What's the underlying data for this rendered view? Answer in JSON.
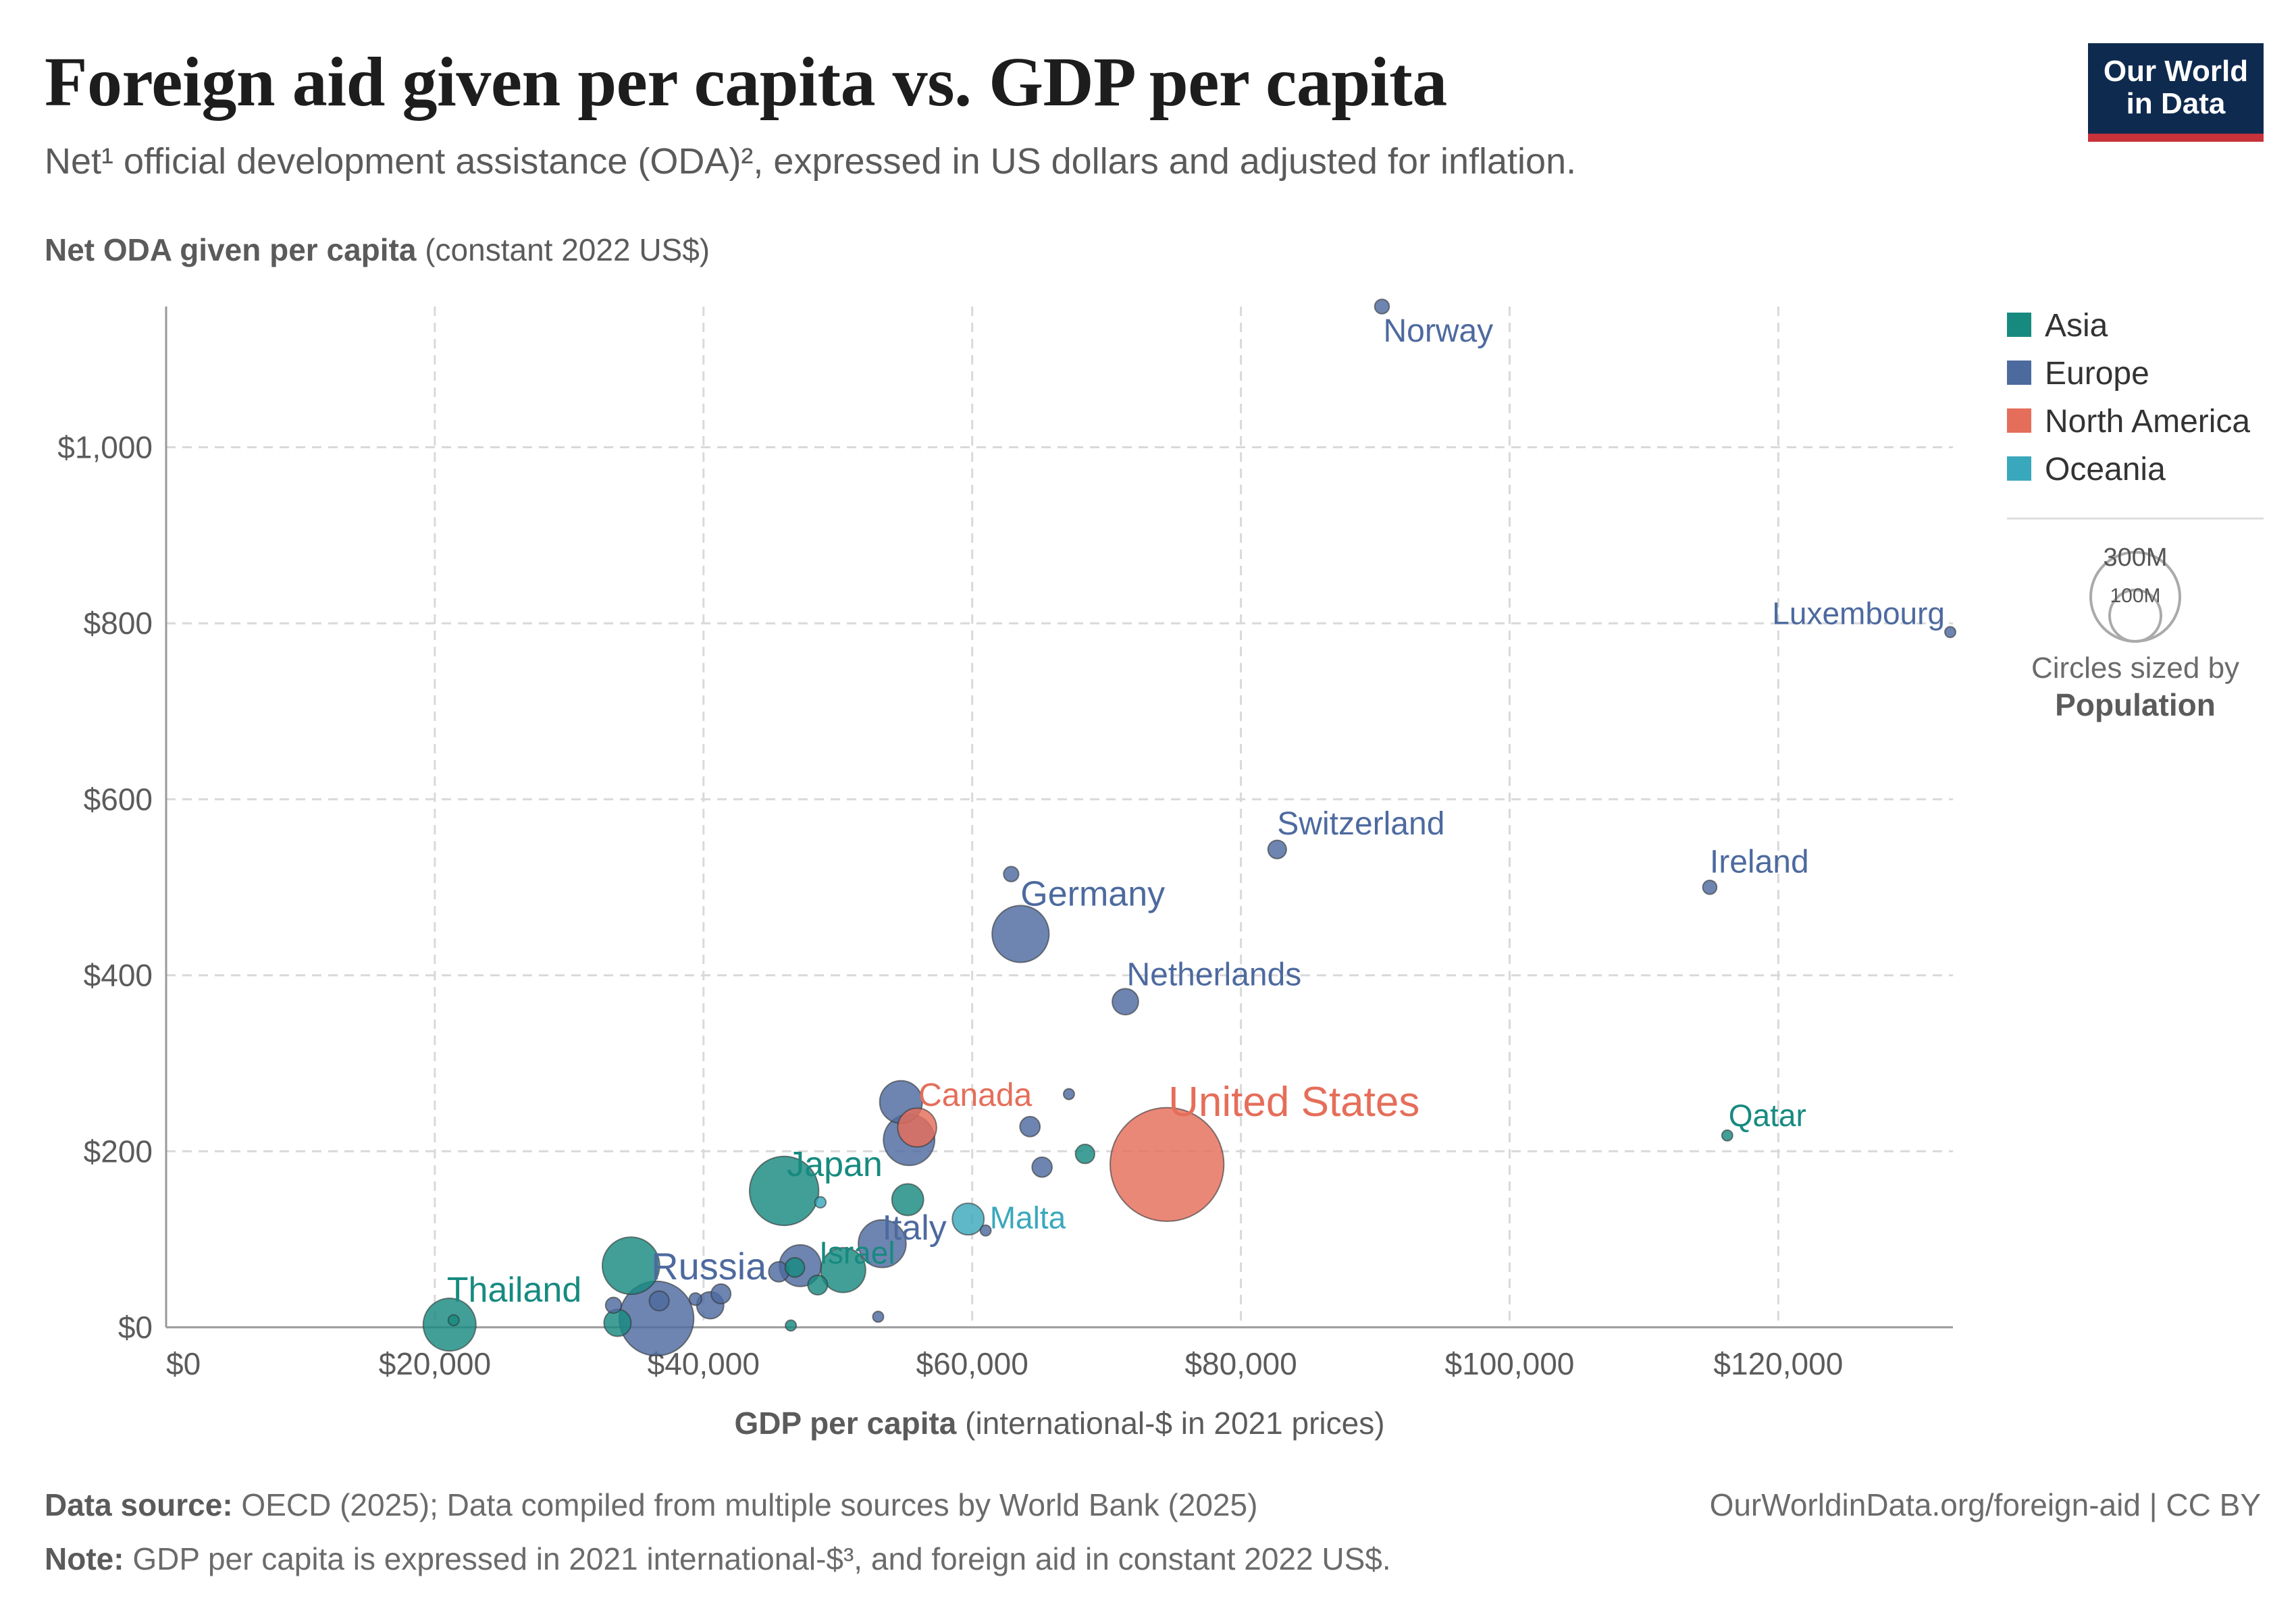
{
  "header": {
    "title": "Foreign aid given per capita vs. GDP per capita",
    "subtitle": "Net¹ official development assistance (ODA)², expressed in US dollars and adjusted for inflation."
  },
  "logo": {
    "line1": "Our World",
    "line2": "in Data"
  },
  "colors": {
    "Asia": "#178a80",
    "Europe": "#4d6a9f",
    "North America": "#e56e5a",
    "Oceania": "#3aa8bc",
    "grid": "#d9d9d9",
    "axis": "#666666",
    "text": "#5b5b5b"
  },
  "chart_data": {
    "type": "scatter",
    "title": "Foreign aid given per capita vs. GDP per capita",
    "xlabel": {
      "bold": "GDP per capita",
      "rest": " (international-$ in 2021 prices)"
    },
    "ylabel": {
      "bold": "Net ODA given per capita",
      "rest": " (constant 2022 US$)"
    },
    "xlim": [
      0,
      133000
    ],
    "ylim": [
      0,
      1160
    ],
    "x_ticks": [
      0,
      20000,
      40000,
      60000,
      80000,
      100000,
      120000
    ],
    "x_tick_labels": [
      "$0",
      "$20,000",
      "$40,000",
      "$60,000",
      "$80,000",
      "$100,000",
      "$120,000"
    ],
    "y_ticks": [
      0,
      200,
      400,
      600,
      800,
      1000
    ],
    "y_tick_labels": [
      "$0",
      "$200",
      "$400",
      "$600",
      "$800",
      "$1,000"
    ],
    "grid": true,
    "legend": {
      "placement": "right",
      "entries": [
        "Asia",
        "Europe",
        "North America",
        "Oceania"
      ],
      "size_legend": {
        "large": "300M",
        "small": "100M",
        "caption": "Circles sized by",
        "variable": "Population"
      }
    },
    "points": [
      {
        "label": "Norway",
        "continent": "Europe",
        "x": 90500,
        "y": 1160,
        "pop": 5.5
      },
      {
        "label": "Luxembourg",
        "continent": "Europe",
        "x": 132800,
        "y": 790,
        "pop": 0.65
      },
      {
        "label": "Switzerland",
        "continent": "Europe",
        "x": 82700,
        "y": 543,
        "pop": 8.8
      },
      {
        "label": "Ireland",
        "continent": "Europe",
        "x": 114900,
        "y": 500,
        "pop": 5.1
      },
      {
        "label": "",
        "continent": "Europe",
        "x": 62900,
        "y": 515,
        "pop": 5.9
      },
      {
        "label": "Germany",
        "continent": "Europe",
        "x": 63600,
        "y": 447,
        "pop": 84
      },
      {
        "label": "Netherlands",
        "continent": "Europe",
        "x": 71400,
        "y": 370,
        "pop": 17.8
      },
      {
        "label": "",
        "continent": "Europe",
        "x": 67200,
        "y": 265,
        "pop": 2.1
      },
      {
        "label": "",
        "continent": "Europe",
        "x": 54700,
        "y": 256,
        "pop": 47
      },
      {
        "label": "Canada",
        "continent": "North America",
        "x": 55900,
        "y": 227,
        "pop": 39
      },
      {
        "label": "",
        "continent": "Europe",
        "x": 55300,
        "y": 213,
        "pop": 68
      },
      {
        "label": "",
        "continent": "Europe",
        "x": 64300,
        "y": 228,
        "pop": 10.5
      },
      {
        "label": "",
        "continent": "Asia",
        "x": 68400,
        "y": 197,
        "pop": 9.5
      },
      {
        "label": "",
        "continent": "Europe",
        "x": 65200,
        "y": 182,
        "pop": 10.4
      },
      {
        "label": "United States",
        "continent": "North America",
        "x": 74500,
        "y": 185,
        "pop": 335
      },
      {
        "label": "Qatar",
        "continent": "Asia",
        "x": 116200,
        "y": 218,
        "pop": 2.7
      },
      {
        "label": "Japan",
        "continent": "Asia",
        "x": 46000,
        "y": 155,
        "pop": 124
      },
      {
        "label": "",
        "continent": "Oceania",
        "x": 48700,
        "y": 142,
        "pop": 3.2
      },
      {
        "label": "",
        "continent": "Asia",
        "x": 55200,
        "y": 145,
        "pop": 26
      },
      {
        "label": "Malta",
        "continent": "Oceania",
        "x": 59700,
        "y": 123,
        "pop": 26
      },
      {
        "label": "",
        "continent": "Europe",
        "x": 61000,
        "y": 110,
        "pop": 0.55
      },
      {
        "label": "Italy",
        "continent": "Europe",
        "x": 53300,
        "y": 95,
        "pop": 59
      },
      {
        "label": "",
        "continent": "Asia",
        "x": 34600,
        "y": 70,
        "pop": 85
      },
      {
        "label": "",
        "continent": "Europe",
        "x": 47200,
        "y": 70,
        "pop": 45
      },
      {
        "label": "",
        "continent": "Asia",
        "x": 50400,
        "y": 65,
        "pop": 52
      },
      {
        "label": "Israel",
        "continent": "Asia",
        "x": 46800,
        "y": 68,
        "pop": 9.7
      },
      {
        "label": "",
        "continent": "Europe",
        "x": 45600,
        "y": 63,
        "pop": 10.4
      },
      {
        "label": "",
        "continent": "Asia",
        "x": 48500,
        "y": 48,
        "pop": 10
      },
      {
        "label": "Russia",
        "continent": "Europe",
        "x": 36500,
        "y": 10,
        "pop": 144
      },
      {
        "label": "",
        "continent": "Europe",
        "x": 41300,
        "y": 38,
        "pop": 10
      },
      {
        "label": "",
        "continent": "Europe",
        "x": 40500,
        "y": 25,
        "pop": 19
      },
      {
        "label": "",
        "continent": "Europe",
        "x": 39400,
        "y": 32,
        "pop": 4
      },
      {
        "label": "",
        "continent": "Europe",
        "x": 33300,
        "y": 25,
        "pop": 6.5
      },
      {
        "label": "",
        "continent": "Europe",
        "x": 36700,
        "y": 30,
        "pop": 10
      },
      {
        "label": "",
        "continent": "Asia",
        "x": 33600,
        "y": 5,
        "pop": 19
      },
      {
        "label": "",
        "continent": "Europe",
        "x": 53000,
        "y": 12,
        "pop": 2.8
      },
      {
        "label": "",
        "continent": "Asia",
        "x": 46500,
        "y": 2,
        "pop": 2.5
      },
      {
        "label": "Thailand",
        "continent": "Asia",
        "x": 21100,
        "y": 3,
        "pop": 72
      },
      {
        "label": "",
        "continent": "Asia",
        "x": 21400,
        "y": 8,
        "pop": 1.5
      }
    ]
  },
  "footer": {
    "source_label": "Data source:",
    "source_text": " OECD (2025); Data compiled from multiple sources by World Bank (2025)",
    "link": "OurWorldinData.org/foreign-aid | CC BY",
    "note_label": "Note:",
    "note_text": " GDP per capita is expressed in 2021 international-$³, and foreign aid in constant 2022 US$."
  }
}
